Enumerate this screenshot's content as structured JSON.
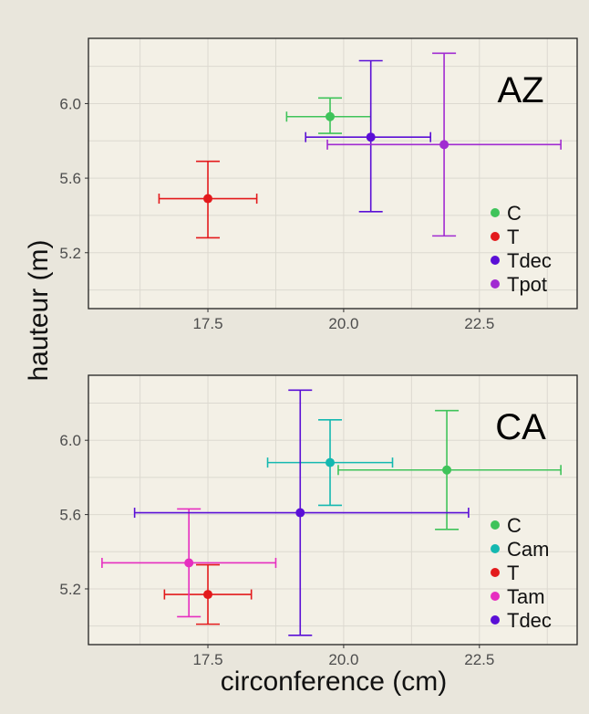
{
  "figure": {
    "ylabel": "hauteur (m)",
    "xlabel": "circonference (cm)",
    "background": "#e9e6dc",
    "panel_background": "#f3f0e6",
    "grid_color": "#dcd9d0",
    "axis_text_color": "#4d4d4d"
  },
  "chart_data": [
    {
      "type": "scatter",
      "panel_label": "AZ",
      "xlim": [
        15.3,
        24.3
      ],
      "ylim": [
        4.9,
        6.35
      ],
      "x_ticks": [
        17.5,
        20.0,
        22.5
      ],
      "x_tick_labels": [
        "17.5",
        "20.0",
        "22.5"
      ],
      "y_ticks": [
        5.2,
        5.6,
        6.0
      ],
      "y_tick_labels": [
        "5.2",
        "5.6",
        "6.0"
      ],
      "grid": true,
      "legend_position": "bottom-right",
      "series": [
        {
          "name": "C",
          "color": "#3fc35a",
          "x": 19.75,
          "y": 5.93,
          "xerr": [
            18.95,
            20.5
          ],
          "yerr": [
            5.84,
            6.03
          ]
        },
        {
          "name": "T",
          "color": "#e31a1c",
          "x": 17.5,
          "y": 5.49,
          "xerr": [
            16.6,
            18.4
          ],
          "yerr": [
            5.28,
            5.69
          ]
        },
        {
          "name": "Tdec",
          "color": "#5a0fd6",
          "x": 20.5,
          "y": 5.82,
          "xerr": [
            19.3,
            21.6
          ],
          "yerr": [
            5.42,
            6.23
          ]
        },
        {
          "name": "Tpot",
          "color": "#a12bd1",
          "x": 21.85,
          "y": 5.78,
          "xerr": [
            19.7,
            24.0
          ],
          "yerr": [
            5.29,
            6.27
          ]
        }
      ]
    },
    {
      "type": "scatter",
      "panel_label": "CA",
      "xlim": [
        15.3,
        24.3
      ],
      "ylim": [
        4.9,
        6.35
      ],
      "x_ticks": [
        17.5,
        20.0,
        22.5
      ],
      "x_tick_labels": [
        "17.5",
        "20.0",
        "22.5"
      ],
      "y_ticks": [
        5.2,
        5.6,
        6.0
      ],
      "y_tick_labels": [
        "5.2",
        "5.6",
        "6.0"
      ],
      "grid": true,
      "legend_position": "bottom-right",
      "series": [
        {
          "name": "C",
          "color": "#3fc35a",
          "x": 21.9,
          "y": 5.84,
          "xerr": [
            19.9,
            24.0
          ],
          "yerr": [
            5.52,
            6.16
          ]
        },
        {
          "name": "Cam",
          "color": "#14b8b0",
          "x": 19.75,
          "y": 5.88,
          "xerr": [
            18.6,
            20.9
          ],
          "yerr": [
            5.65,
            6.11
          ]
        },
        {
          "name": "T",
          "color": "#e31a1c",
          "x": 17.5,
          "y": 5.17,
          "xerr": [
            16.7,
            18.3
          ],
          "yerr": [
            5.01,
            5.33
          ]
        },
        {
          "name": "Tam",
          "color": "#e62ec0",
          "x": 17.15,
          "y": 5.34,
          "xerr": [
            15.55,
            18.75
          ],
          "yerr": [
            5.05,
            5.63
          ]
        },
        {
          "name": "Tdec",
          "color": "#5a0fd6",
          "x": 19.2,
          "y": 5.61,
          "xerr": [
            16.15,
            22.3
          ],
          "yerr": [
            4.95,
            6.27
          ]
        }
      ]
    }
  ]
}
